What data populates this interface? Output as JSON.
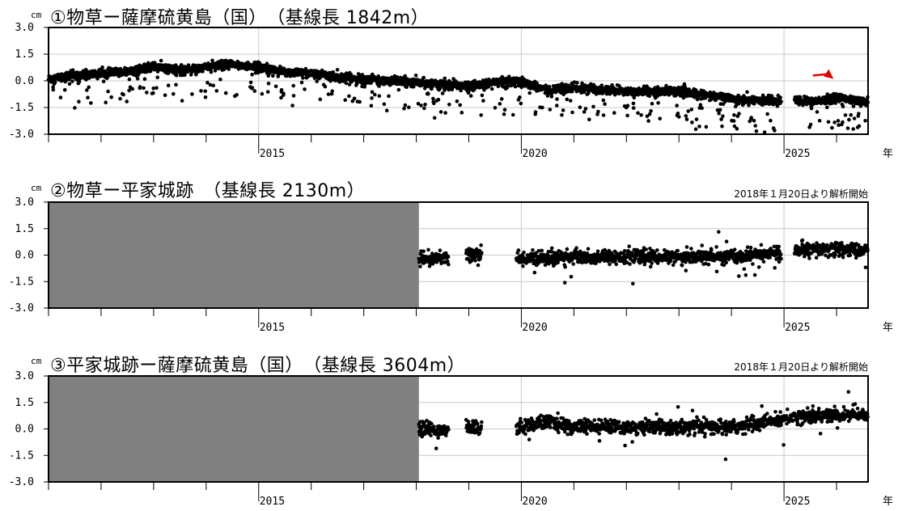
{
  "year_unit": "年",
  "chart_data": [
    {
      "type": "scatter",
      "title": "①物草ー薩摩硫黄島（国）　（基線長 1842m）",
      "ylabel": "cm",
      "ylim": [
        -3.0,
        3.0
      ],
      "yticks": [
        "3.0",
        "1.5",
        "0.0",
        "-1.5",
        "-3.0"
      ],
      "xlim": [
        2011.0,
        2026.6
      ],
      "xtick_labels": [
        "2015",
        "2020",
        "2025"
      ],
      "xunit": "年",
      "note": "",
      "no_data_until": null,
      "grid": true,
      "marker": "arrow-red",
      "series": [
        {
          "name": "",
          "values_trend": [
            [
              2011.0,
              0.1
            ],
            [
              2011.5,
              0.3
            ],
            [
              2012.0,
              0.4
            ],
            [
              2012.5,
              0.5
            ],
            [
              2013.0,
              0.8
            ],
            [
              2013.5,
              0.6
            ],
            [
              2014.0,
              0.8
            ],
            [
              2014.5,
              0.9
            ],
            [
              2015.0,
              0.8
            ],
            [
              2015.5,
              0.5
            ],
            [
              2016.0,
              0.4
            ],
            [
              2016.5,
              0.2
            ],
            [
              2017.0,
              0.1
            ],
            [
              2017.5,
              0.0
            ],
            [
              2018.0,
              -0.1
            ],
            [
              2018.5,
              -0.2
            ],
            [
              2019.0,
              -0.3
            ],
            [
              2019.5,
              -0.1
            ],
            [
              2020.0,
              -0.1
            ],
            [
              2020.5,
              -0.5
            ],
            [
              2021.0,
              -0.4
            ],
            [
              2021.5,
              -0.5
            ],
            [
              2022.0,
              -0.6
            ],
            [
              2022.5,
              -0.6
            ],
            [
              2023.0,
              -0.6
            ],
            [
              2023.5,
              -0.8
            ],
            [
              2024.0,
              -1.0
            ],
            [
              2024.5,
              -1.1
            ],
            [
              2024.9,
              -1.1
            ],
            [
              2025.2,
              -1.1
            ],
            [
              2025.6,
              -1.2
            ],
            [
              2026.0,
              -0.9
            ],
            [
              2026.5,
              -1.2
            ]
          ],
          "gap": [
            2024.95,
            2025.2
          ]
        }
      ]
    },
    {
      "type": "scatter",
      "title": "②物草ー平家城跡　（基線長 2130m）",
      "ylabel": "cm",
      "ylim": [
        -3.0,
        3.0
      ],
      "yticks": [
        "3.0",
        "1.5",
        "0.0",
        "-1.5",
        "-3.0"
      ],
      "xlim": [
        2011.0,
        2026.6
      ],
      "xtick_labels": [
        "2015",
        "2020",
        "2025"
      ],
      "xunit": "年",
      "note": "2018年１月20日より解析開始",
      "no_data_until": 2018.05,
      "grid": true,
      "series": [
        {
          "name": "",
          "values_trend": [
            [
              2018.05,
              -0.3
            ],
            [
              2018.6,
              -0.1
            ],
            [
              2019.0,
              0.0
            ],
            [
              2019.3,
              0.0
            ],
            [
              2020.0,
              -0.2
            ],
            [
              2021.0,
              -0.1
            ],
            [
              2022.0,
              -0.1
            ],
            [
              2023.0,
              -0.1
            ],
            [
              2024.0,
              -0.1
            ],
            [
              2024.9,
              0.1
            ],
            [
              2025.2,
              0.3
            ],
            [
              2026.5,
              0.3
            ]
          ],
          "gaps": [
            [
              2018.62,
              2018.95
            ],
            [
              2019.25,
              2019.9
            ],
            [
              2024.95,
              2025.2
            ]
          ]
        }
      ]
    },
    {
      "type": "scatter",
      "title": "③平家城跡ー薩摩硫黄島（国）　（基線長 3604m）",
      "ylabel": "cm",
      "ylim": [
        -3.0,
        3.0
      ],
      "yticks": [
        "3.0",
        "1.5",
        "0.0",
        "-1.5",
        "-3.0"
      ],
      "xlim": [
        2011.0,
        2026.6
      ],
      "xtick_labels": [
        "2015",
        "2020",
        "2025"
      ],
      "xunit": "年",
      "note": "2018年１月20日より解析開始",
      "no_data_until": 2018.05,
      "grid": true,
      "series": [
        {
          "name": "",
          "values_trend": [
            [
              2018.05,
              0.0
            ],
            [
              2018.6,
              -0.1
            ],
            [
              2019.0,
              0.1
            ],
            [
              2019.3,
              0.1
            ],
            [
              2020.0,
              0.1
            ],
            [
              2020.5,
              0.4
            ],
            [
              2021.0,
              0.1
            ],
            [
              2022.0,
              0.1
            ],
            [
              2023.0,
              0.1
            ],
            [
              2024.0,
              0.1
            ],
            [
              2024.5,
              0.3
            ],
            [
              2024.9,
              0.5
            ],
            [
              2025.2,
              0.7
            ],
            [
              2026.5,
              0.8
            ]
          ],
          "gaps": [
            [
              2018.62,
              2018.95
            ],
            [
              2019.25,
              2019.9
            ]
          ]
        }
      ]
    }
  ]
}
